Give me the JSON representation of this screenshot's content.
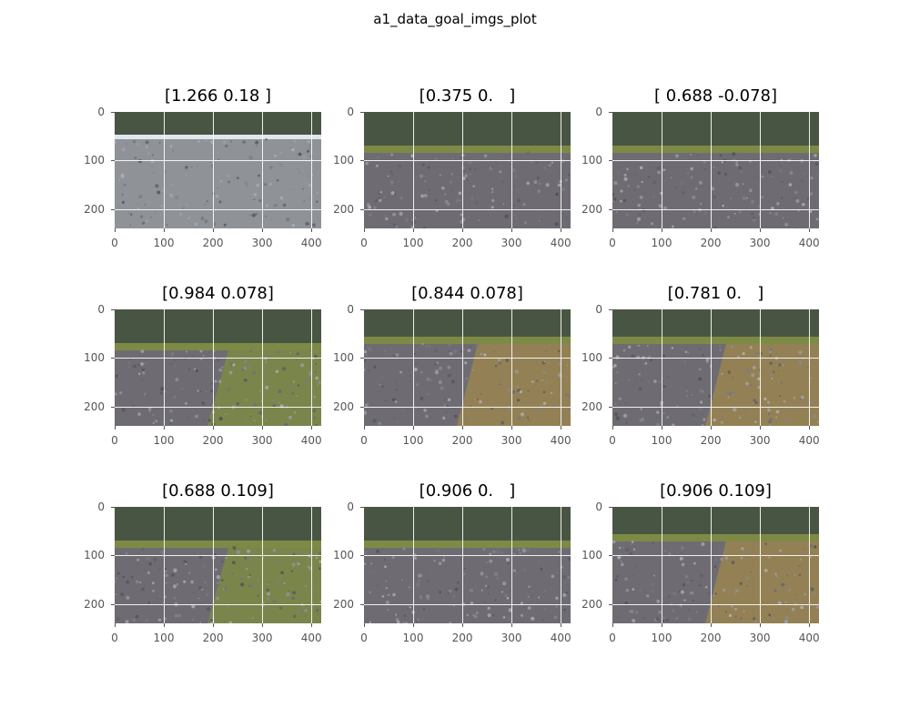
{
  "figure_title": "a1_data_goal_imgs_plot",
  "panels": [
    {
      "title": "[1.266 0.18 ]",
      "scene": "paved-road"
    },
    {
      "title": "[0.375 0.   ]",
      "scene": "gravel-path"
    },
    {
      "title": "[ 0.688 -0.078]",
      "scene": "gravel-path"
    },
    {
      "title": "[0.984 0.078]",
      "scene": "grassy-path"
    },
    {
      "title": "[0.844 0.078]",
      "scene": "gravel-field"
    },
    {
      "title": "[0.781 0.   ]",
      "scene": "gravel-field"
    },
    {
      "title": "[0.688 0.109]",
      "scene": "grassy-path"
    },
    {
      "title": "[0.906 0.   ]",
      "scene": "gravel-path"
    },
    {
      "title": "[0.906 0.109]",
      "scene": "gravel-field"
    }
  ],
  "x_ticks": [
    "0",
    "100",
    "200",
    "300",
    "400"
  ],
  "y_ticks": [
    "0",
    "100",
    "200"
  ],
  "colors": {
    "sky": "#dfe8ef",
    "trees": "#2f3b24",
    "grass": "#7d8a45",
    "gravel": "#6e6c72",
    "road": "#8f9296",
    "dry_grass": "#9a8550"
  }
}
